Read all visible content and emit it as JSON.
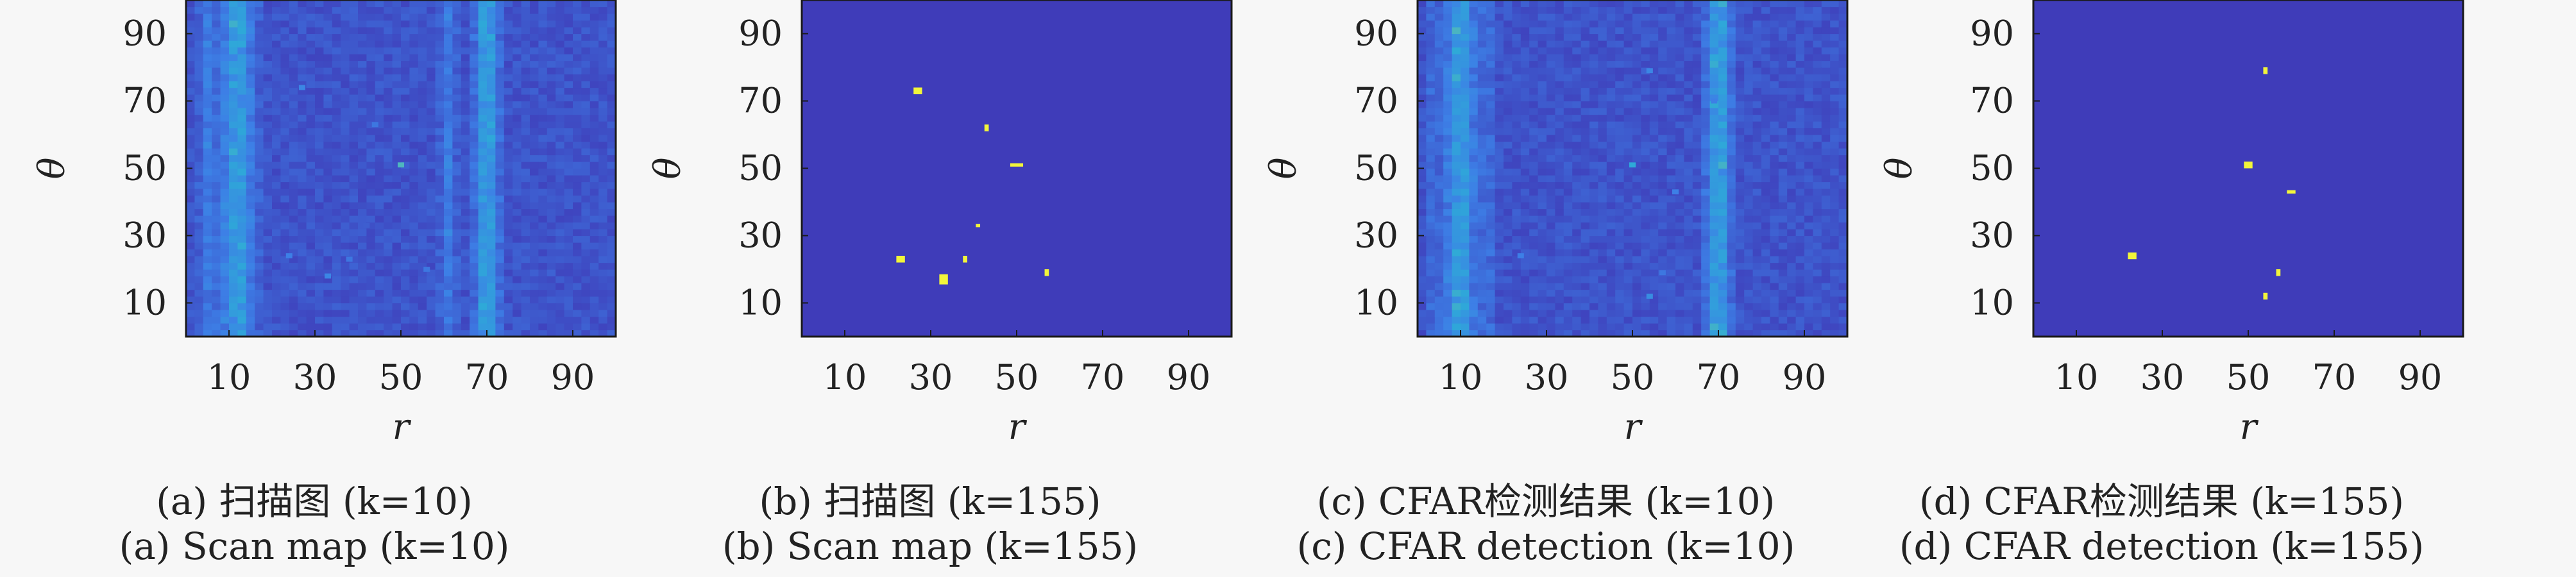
{
  "colors": {
    "background": "#3f3cb9",
    "highlight": "#f2f53a",
    "bright_band": "#2ea9d8",
    "mid_band": "#3d7fe6",
    "outline": "#1a1a1a"
  },
  "chart_data": [
    {
      "type": "heatmap",
      "xlabel": "r",
      "ylabel": "θ",
      "xlim": [
        0,
        100
      ],
      "ylim": [
        0,
        100
      ],
      "xticks": [
        "10",
        "30",
        "50",
        "70",
        "90"
      ],
      "yticks": [
        "10",
        "30",
        "50",
        "70",
        "90"
      ],
      "caption_cn": "(a) 扫描图 (k=10)",
      "caption_en": "(a) Scan map (k=10)",
      "field": "noisy",
      "bands": [
        {
          "center": 12,
          "width": 6,
          "intensity": 0.55
        },
        {
          "center": 70,
          "width": 4,
          "intensity": 0.6
        },
        {
          "center": 5,
          "width": 3,
          "intensity": 0.25
        },
        {
          "center": 61,
          "width": 3,
          "intensity": 0.25
        }
      ],
      "targets": [
        {
          "r": 27,
          "theta": 74,
          "v": 0.45
        },
        {
          "r": 44,
          "theta": 63,
          "v": 0.35
        },
        {
          "r": 50,
          "theta": 51,
          "v": 0.75
        },
        {
          "r": 24,
          "theta": 24,
          "v": 0.4
        },
        {
          "r": 38,
          "theta": 23,
          "v": 0.35
        },
        {
          "r": 33,
          "theta": 18,
          "v": 0.45
        },
        {
          "r": 56,
          "theta": 20,
          "v": 0.35
        },
        {
          "r": 42,
          "theta": 33,
          "v": 0.2
        }
      ]
    },
    {
      "type": "heatmap",
      "xlabel": "r",
      "ylabel": "θ",
      "xlim": [
        0,
        100
      ],
      "ylim": [
        0,
        100
      ],
      "xticks": [
        "10",
        "30",
        "50",
        "70",
        "90"
      ],
      "yticks": [
        "10",
        "30",
        "50",
        "70",
        "90"
      ],
      "caption_cn": "(b) 扫描图 (k=155)",
      "caption_en": "(b) Scan map (k=155)",
      "field": "flat",
      "bands": [],
      "targets": [
        {
          "r": 27,
          "theta": 73,
          "v": 1.0,
          "w": 2,
          "h": 2
        },
        {
          "r": 43,
          "theta": 62,
          "v": 1.0,
          "w": 1,
          "h": 2
        },
        {
          "r": 50,
          "theta": 51,
          "v": 1.0,
          "w": 3,
          "h": 1
        },
        {
          "r": 41,
          "theta": 33,
          "v": 1.0,
          "w": 1,
          "h": 1
        },
        {
          "r": 23,
          "theta": 23,
          "v": 1.0,
          "w": 2,
          "h": 2
        },
        {
          "r": 38,
          "theta": 23,
          "v": 1.0,
          "w": 1,
          "h": 2
        },
        {
          "r": 33,
          "theta": 17,
          "v": 1.0,
          "w": 2,
          "h": 3
        },
        {
          "r": 57,
          "theta": 19,
          "v": 1.0,
          "w": 1,
          "h": 2
        }
      ]
    },
    {
      "type": "heatmap",
      "xlabel": "r",
      "ylabel": "θ",
      "xlim": [
        0,
        100
      ],
      "ylim": [
        0,
        100
      ],
      "xticks": [
        "10",
        "30",
        "50",
        "70",
        "90"
      ],
      "yticks": [
        "10",
        "30",
        "50",
        "70",
        "90"
      ],
      "caption_cn": "(c) CFAR检测结果 (k=10)",
      "caption_en": "(c) CFAR detection (k=10)",
      "field": "noisy",
      "bands": [
        {
          "center": 10,
          "width": 5,
          "intensity": 0.6
        },
        {
          "center": 70,
          "width": 4,
          "intensity": 0.65
        },
        {
          "center": 4,
          "width": 2,
          "intensity": 0.25
        },
        {
          "center": 16,
          "width": 2,
          "intensity": 0.3
        }
      ],
      "targets": [
        {
          "r": 54,
          "theta": 79,
          "v": 0.45
        },
        {
          "r": 69,
          "theta": 70,
          "v": 0.4
        },
        {
          "r": 50,
          "theta": 51,
          "v": 0.7
        },
        {
          "r": 60,
          "theta": 43,
          "v": 0.4
        },
        {
          "r": 24,
          "theta": 24,
          "v": 0.4
        },
        {
          "r": 54,
          "theta": 12,
          "v": 0.5
        },
        {
          "r": 57,
          "theta": 19,
          "v": 0.35
        }
      ]
    },
    {
      "type": "heatmap",
      "xlabel": "r",
      "ylabel": "θ",
      "xlim": [
        0,
        100
      ],
      "ylim": [
        0,
        100
      ],
      "xticks": [
        "10",
        "30",
        "50",
        "70",
        "90"
      ],
      "yticks": [
        "10",
        "30",
        "50",
        "70",
        "90"
      ],
      "caption_cn": "(d) CFAR检测结果 (k=155)",
      "caption_en": "(d) CFAR detection (k=155)",
      "field": "flat",
      "bands": [],
      "targets": [
        {
          "r": 54,
          "theta": 79,
          "v": 1.0,
          "w": 1,
          "h": 2
        },
        {
          "r": 50,
          "theta": 51,
          "v": 1.0,
          "w": 2,
          "h": 2
        },
        {
          "r": 60,
          "theta": 43,
          "v": 1.0,
          "w": 2,
          "h": 1
        },
        {
          "r": 23,
          "theta": 24,
          "v": 1.0,
          "w": 2,
          "h": 2
        },
        {
          "r": 57,
          "theta": 19,
          "v": 1.0,
          "w": 1,
          "h": 2
        },
        {
          "r": 54,
          "theta": 12,
          "v": 1.0,
          "w": 1,
          "h": 2
        }
      ]
    }
  ]
}
